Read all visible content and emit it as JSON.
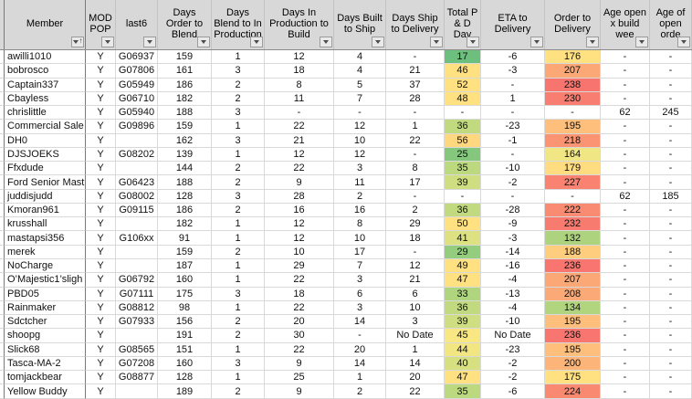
{
  "table": {
    "columns": [
      {
        "id": "member",
        "label": "Member"
      },
      {
        "id": "modpop",
        "label": "MOD POP"
      },
      {
        "id": "last6",
        "label": "last6"
      },
      {
        "id": "d_otb",
        "label": "Days Order to Blend"
      },
      {
        "id": "d_btip",
        "label": "Days Blend to In Production"
      },
      {
        "id": "d_iptb",
        "label": "Days In Production to Build"
      },
      {
        "id": "d_bts",
        "label": "Days Built to Ship"
      },
      {
        "id": "d_std",
        "label": "Days Ship to Delivery"
      },
      {
        "id": "tpd",
        "label": "Total P & D Day"
      },
      {
        "id": "eta",
        "label": "ETA to Delivery"
      },
      {
        "id": "otd",
        "label": "Order to Delivery"
      },
      {
        "id": "agex",
        "label": "Age open x build wee"
      },
      {
        "id": "ageo",
        "label": "Age of open orde"
      }
    ],
    "icons": {
      "filter": "chevron-down-icon",
      "member_sort": "arrow-up-icon",
      "sort_glyph": "↑"
    },
    "colors": {
      "header_bg": "#d8d8d8",
      "gridline": "#d9d9d9",
      "dark_divider": "#7a7a7a"
    },
    "rows": [
      {
        "member": "awilli1010",
        "modpop": "Y",
        "last6": "G06937",
        "d_otb": "159",
        "d_btip": "1",
        "d_iptb": "12",
        "d_bts": "4",
        "d_std": "-",
        "tpd": "17",
        "tpd_bg": "#6DBF7D",
        "eta": "-6",
        "otd": "176",
        "otd_bg": "#FFE182",
        "agex": "-",
        "ageo": "-"
      },
      {
        "member": "bobrosco",
        "modpop": "Y",
        "last6": "G07806",
        "d_otb": "161",
        "d_btip": "3",
        "d_iptb": "18",
        "d_bts": "4",
        "d_std": "21",
        "tpd": "46",
        "tpd_bg": "#FFE182",
        "eta": "-3",
        "otd": "207",
        "otd_bg": "#FBA776",
        "agex": "-",
        "ageo": "-"
      },
      {
        "member": "Captain337",
        "modpop": "Y",
        "last6": "G05949",
        "d_otb": "186",
        "d_btip": "2",
        "d_iptb": "8",
        "d_bts": "5",
        "d_std": "37",
        "tpd": "52",
        "tpd_bg": "#FFE182",
        "eta": "-",
        "otd": "238",
        "otd_bg": "#F8756F",
        "agex": "-",
        "ageo": "-"
      },
      {
        "member": "Cbayless",
        "modpop": "Y",
        "last6": "G06710",
        "d_otb": "182",
        "d_btip": "2",
        "d_iptb": "11",
        "d_bts": "7",
        "d_std": "28",
        "tpd": "48",
        "tpd_bg": "#FFE182",
        "eta": "1",
        "otd": "230",
        "otd_bg": "#F87E71",
        "agex": "-",
        "ageo": "-"
      },
      {
        "member": "chrislittle",
        "modpop": "Y",
        "last6": "G05940",
        "d_otb": "188",
        "d_btip": "3",
        "d_iptb": "-",
        "d_bts": "-",
        "d_std": "-",
        "tpd": "-",
        "tpd_bg": "",
        "eta": "-",
        "otd": "-",
        "otd_bg": "",
        "agex": "62",
        "ageo": "245"
      },
      {
        "member": "Commercial Sale",
        "modpop": "Y",
        "last6": "G09896",
        "d_otb": "159",
        "d_btip": "1",
        "d_iptb": "22",
        "d_bts": "12",
        "d_std": "1",
        "tpd": "36",
        "tpd_bg": "#C1DA80",
        "eta": "-23",
        "otd": "195",
        "otd_bg": "#FDBF7B",
        "agex": "-",
        "ageo": "-"
      },
      {
        "member": "DH0",
        "modpop": "Y",
        "last6": "",
        "d_otb": "162",
        "d_btip": "3",
        "d_iptb": "21",
        "d_bts": "10",
        "d_std": "22",
        "tpd": "56",
        "tpd_bg": "#FFD77E",
        "eta": "-1",
        "otd": "218",
        "otd_bg": "#FA9473",
        "agex": "-",
        "ageo": "-"
      },
      {
        "member": "DJSJOEKS",
        "modpop": "Y",
        "last6": "G08202",
        "d_otb": "139",
        "d_btip": "1",
        "d_iptb": "12",
        "d_bts": "12",
        "d_std": "-",
        "tpd": "25",
        "tpd_bg": "#84C77D",
        "eta": "-",
        "otd": "164",
        "otd_bg": "#F0E683",
        "agex": "-",
        "ageo": "-"
      },
      {
        "member": "Ffxdude",
        "modpop": "Y",
        "last6": "",
        "d_otb": "144",
        "d_btip": "2",
        "d_iptb": "22",
        "d_bts": "3",
        "d_std": "8",
        "tpd": "35",
        "tpd_bg": "#BCD980",
        "eta": "-10",
        "otd": "179",
        "otd_bg": "#FFDC80",
        "agex": "-",
        "ageo": "-"
      },
      {
        "member": "Ford Senior Mast",
        "modpop": "Y",
        "last6": "G06423",
        "d_otb": "188",
        "d_btip": "2",
        "d_iptb": "9",
        "d_bts": "11",
        "d_std": "17",
        "tpd": "39",
        "tpd_bg": "#CFDE81",
        "eta": "-2",
        "otd": "227",
        "otd_bg": "#F98270",
        "agex": "-",
        "ageo": "-"
      },
      {
        "member": "juddisjudd",
        "modpop": "Y",
        "last6": "G08002",
        "d_otb": "128",
        "d_btip": "3",
        "d_iptb": "28",
        "d_bts": "2",
        "d_std": "-",
        "tpd": "-",
        "tpd_bg": "",
        "eta": "-",
        "otd": "-",
        "otd_bg": "",
        "agex": "62",
        "ageo": "185"
      },
      {
        "member": "Kmoran961",
        "modpop": "Y",
        "last6": "G09115",
        "d_otb": "186",
        "d_btip": "2",
        "d_iptb": "16",
        "d_bts": "16",
        "d_std": "2",
        "tpd": "36",
        "tpd_bg": "#C1DA80",
        "eta": "-28",
        "otd": "222",
        "otd_bg": "#F98B72",
        "agex": "-",
        "ageo": "-"
      },
      {
        "member": "krusshall",
        "modpop": "Y",
        "last6": "",
        "d_otb": "182",
        "d_btip": "1",
        "d_iptb": "12",
        "d_bts": "8",
        "d_std": "29",
        "tpd": "50",
        "tpd_bg": "#FFE182",
        "eta": "-9",
        "otd": "232",
        "otd_bg": "#F87B70",
        "agex": "-",
        "ageo": "-"
      },
      {
        "member": "mastapsi356",
        "modpop": "Y",
        "last6": "G106xx",
        "d_otb": "91",
        "d_btip": "1",
        "d_iptb": "12",
        "d_bts": "10",
        "d_std": "18",
        "tpd": "41",
        "tpd_bg": "#DDE182",
        "eta": "-3",
        "otd": "132",
        "otd_bg": "#AED37E",
        "agex": "-",
        "ageo": "-"
      },
      {
        "member": "merek",
        "modpop": "Y",
        "last6": "",
        "d_otb": "159",
        "d_btip": "2",
        "d_iptb": "10",
        "d_bts": "17",
        "d_std": "-",
        "tpd": "29",
        "tpd_bg": "#95CD7E",
        "eta": "-14",
        "otd": "188",
        "otd_bg": "#FECD7D",
        "agex": "-",
        "ageo": "-"
      },
      {
        "member": "NoCharge",
        "modpop": "Y",
        "last6": "",
        "d_otb": "187",
        "d_btip": "1",
        "d_iptb": "29",
        "d_bts": "7",
        "d_std": "12",
        "tpd": "49",
        "tpd_bg": "#FFE182",
        "eta": "-16",
        "otd": "236",
        "otd_bg": "#F8766F",
        "agex": "-",
        "ageo": "-"
      },
      {
        "member": "O’Majestic1’sligh",
        "modpop": "Y",
        "last6": "G06792",
        "d_otb": "160",
        "d_btip": "1",
        "d_iptb": "22",
        "d_bts": "3",
        "d_std": "21",
        "tpd": "47",
        "tpd_bg": "#FFE182",
        "eta": "-4",
        "otd": "207",
        "otd_bg": "#FBA776",
        "agex": "-",
        "ageo": "-"
      },
      {
        "member": "PBD05",
        "modpop": "Y",
        "last6": "G07111",
        "d_otb": "175",
        "d_btip": "3",
        "d_iptb": "18",
        "d_bts": "6",
        "d_std": "6",
        "tpd": "33",
        "tpd_bg": "#AFD57F",
        "eta": "-13",
        "otd": "208",
        "otd_bg": "#FBA976",
        "agex": "-",
        "ageo": "-"
      },
      {
        "member": "Rainmaker",
        "modpop": "Y",
        "last6": "G08812",
        "d_otb": "98",
        "d_btip": "1",
        "d_iptb": "22",
        "d_bts": "3",
        "d_std": "10",
        "tpd": "36",
        "tpd_bg": "#C1DA80",
        "eta": "-4",
        "otd": "134",
        "otd_bg": "#B1D47E",
        "agex": "-",
        "ageo": "-"
      },
      {
        "member": "Sdctcher",
        "modpop": "Y",
        "last6": "G07933",
        "d_otb": "156",
        "d_btip": "2",
        "d_iptb": "20",
        "d_bts": "14",
        "d_std": "3",
        "tpd": "39",
        "tpd_bg": "#CFDE81",
        "eta": "-10",
        "otd": "195",
        "otd_bg": "#FDBF7B",
        "agex": "-",
        "ageo": "-"
      },
      {
        "member": "shoopg",
        "modpop": "Y",
        "last6": "",
        "d_otb": "191",
        "d_btip": "2",
        "d_iptb": "30",
        "d_bts": "-",
        "d_std": "No Date",
        "tpd": "45",
        "tpd_bg": "#F8E783",
        "eta": "No Date",
        "otd": "236",
        "otd_bg": "#F8766F",
        "agex": "-",
        "ageo": "-"
      },
      {
        "member": "Slick68",
        "modpop": "Y",
        "last6": "G08565",
        "d_otb": "151",
        "d_btip": "1",
        "d_iptb": "22",
        "d_bts": "20",
        "d_std": "1",
        "tpd": "44",
        "tpd_bg": "#F2E683",
        "eta": "-23",
        "otd": "195",
        "otd_bg": "#FDBF7B",
        "agex": "-",
        "ageo": "-"
      },
      {
        "member": "Tasca-MA-2",
        "modpop": "Y",
        "last6": "G07208",
        "d_otb": "160",
        "d_btip": "3",
        "d_iptb": "9",
        "d_bts": "14",
        "d_std": "14",
        "tpd": "40",
        "tpd_bg": "#D6E081",
        "eta": "-2",
        "otd": "200",
        "otd_bg": "#FCB478",
        "agex": "-",
        "ageo": "-"
      },
      {
        "member": "tomjackbear",
        "modpop": "Y",
        "last6": "G08877",
        "d_otb": "128",
        "d_btip": "1",
        "d_iptb": "25",
        "d_bts": "1",
        "d_std": "20",
        "tpd": "47",
        "tpd_bg": "#FFE182",
        "eta": "-2",
        "otd": "175",
        "otd_bg": "#FFE182",
        "agex": "-",
        "ageo": "-"
      },
      {
        "member": "Yellow Buddy",
        "modpop": "Y",
        "last6": "",
        "d_otb": "189",
        "d_btip": "2",
        "d_iptb": "9",
        "d_bts": "2",
        "d_std": "22",
        "tpd": "35",
        "tpd_bg": "#BCD980",
        "eta": "-6",
        "otd": "224",
        "otd_bg": "#F98971",
        "agex": "-",
        "ageo": "-"
      }
    ]
  }
}
